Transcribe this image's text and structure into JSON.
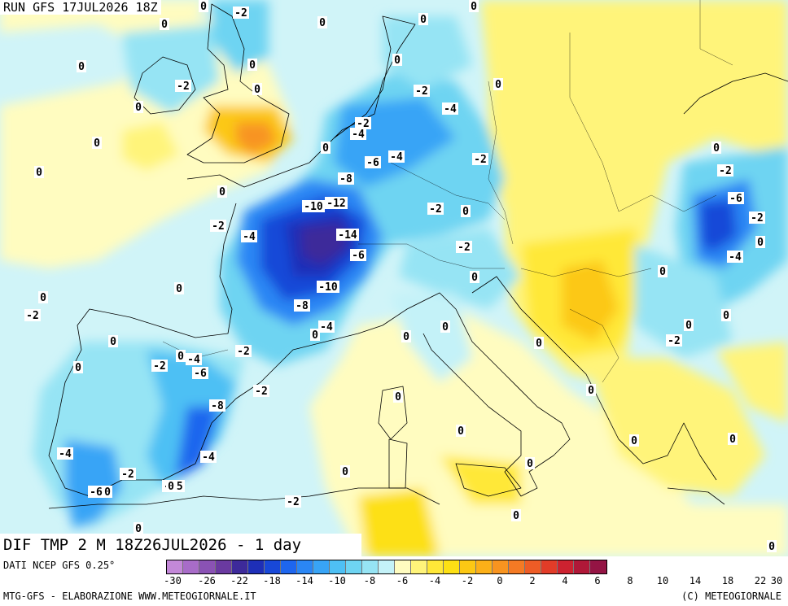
{
  "header": {
    "run": "RUN GFS 17JUL2026 18Z"
  },
  "title": "DIF TMP 2 M 18Z26JUL2026 - 1 day",
  "source": "DATI NCEP GFS 0.25°",
  "legend": {
    "colors": [
      "#c388d8",
      "#a86cc8",
      "#8a52b4",
      "#6a3aa0",
      "#3d2a9a",
      "#1e2fb8",
      "#1848d8",
      "#1e66ee",
      "#2a86f4",
      "#38a4f6",
      "#4ec0f4",
      "#6ed4f2",
      "#96e4f4",
      "#c4f2f8",
      "#fffcc0",
      "#fff47a",
      "#ffe838",
      "#fde014",
      "#fcc814",
      "#fcb018",
      "#f89420",
      "#f47a24",
      "#ee5c26",
      "#e23c28",
      "#cc2230",
      "#b01838",
      "#941444"
    ],
    "ticks": [
      "-30",
      "-26",
      "-22",
      "-18",
      "-14",
      "-10",
      "-8",
      "-6",
      "-4",
      "-2",
      "0",
      "2",
      "4",
      "6",
      "8",
      "10",
      "14",
      "18",
      "22",
      "30"
    ]
  },
  "footer": {
    "left": "MTG-GFS - ELABORAZIONE WWW.METEOGIORNALE.IT",
    "right": "(C) METEOGIORNALE"
  },
  "map_labels": [
    "-2",
    "0",
    "0",
    "0",
    "0",
    "0",
    "-2",
    "0",
    "0",
    "0",
    "0",
    "-2",
    "-4",
    "-2",
    "-4",
    "0",
    "0",
    "-6",
    "-4",
    "-8",
    "-2",
    "-10",
    "-12",
    "-2",
    "-4",
    "-14",
    "-6",
    "-2",
    "-10",
    "0",
    "-8",
    "0",
    "-4",
    "0",
    "0",
    "0",
    "-2",
    "-4",
    "0",
    "-2",
    "-6",
    "-8",
    "-2",
    "0",
    "0",
    "-4",
    "-4",
    "-6",
    "0",
    "-25",
    "-2",
    "0",
    "0",
    "0",
    "0",
    "0",
    "0",
    "0",
    "0",
    "0",
    "-2",
    "-2",
    "-6",
    "-2",
    "0",
    "-4",
    "0",
    "0",
    "0",
    "0",
    "-2",
    "0",
    "0",
    "0",
    "0",
    "0",
    "0",
    "0",
    "0",
    "-2",
    "0",
    "-2",
    "0"
  ]
}
